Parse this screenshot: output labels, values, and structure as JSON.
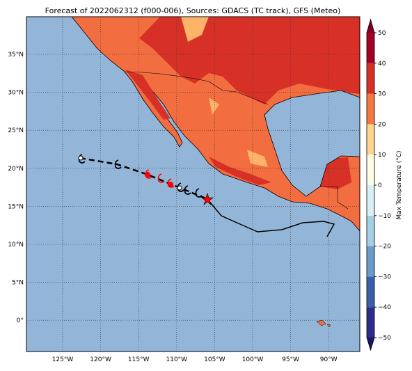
{
  "title": "Forecast of 2022062312 (f000-006), Sources: GDACS (TC track), GFS (Meteo)",
  "map": {
    "lon_ticks": [
      "125°W",
      "120°W",
      "115°W",
      "110°W",
      "105°W",
      "100°W",
      "95°W",
      "90°W"
    ],
    "lat_ticks": [
      "35°N",
      "30°N",
      "25°N",
      "20°N",
      "15°N",
      "10°N",
      "5°N",
      "0°"
    ]
  },
  "colorbar": {
    "label": "Max Temperature (°C)",
    "range": [
      -50,
      50
    ],
    "ticks": [
      {
        "value": -50,
        "label": "−50"
      },
      {
        "value": -40,
        "label": "−40"
      },
      {
        "value": -30,
        "label": "−30"
      },
      {
        "value": -20,
        "label": "−20"
      },
      {
        "value": -10,
        "label": "−10"
      },
      0,
      10,
      20,
      30,
      40,
      50
    ]
  }
}
